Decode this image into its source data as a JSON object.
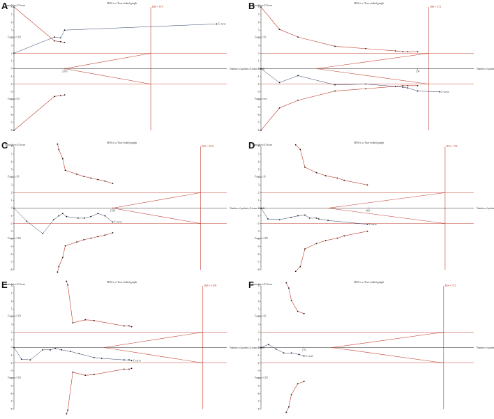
{
  "colors": {
    "red": "#c0392b",
    "black": "#222222",
    "grey": "#6f6f6f"
  },
  "chart_data": [
    {
      "type": "line",
      "panel": "A",
      "title": "RIS is a Two-sided graph",
      "ylabel": "Cumulative Z-Score",
      "xlabel": "Number of patients (Linear scaled)",
      "ylim": [
        -8,
        8
      ],
      "ris_label": "RIS = 675",
      "ris": 675,
      "x_max": 1050,
      "yticks": [
        8,
        7,
        6,
        5,
        4,
        3,
        2,
        1,
        0,
        -1,
        -2,
        -3,
        -4,
        -5,
        -6,
        -7,
        -8
      ],
      "upper_label": "Favours CID",
      "lower_label": "Favours GS",
      "boundary_upper": {
        "x": [
          0,
          200,
          230,
          250
        ],
        "y": [
          8,
          3.6,
          3.5,
          3.4
        ]
      },
      "boundary_lower": {
        "x": [
          0,
          200,
          230,
          250
        ],
        "y": [
          -8,
          -3.6,
          -3.5,
          -3.4
        ]
      },
      "futility_upper": {
        "x": [
          250,
          675
        ],
        "y": [
          0,
          2
        ]
      },
      "futility_lower": {
        "x": [
          250,
          675
        ],
        "y": [
          0,
          -2
        ]
      },
      "z_curve_label": "Z-curve",
      "z_curve": {
        "x": [
          0,
          200,
          230,
          250,
          1000
        ],
        "y": [
          2,
          4.1,
          4.0,
          5.0,
          5.8
        ]
      },
      "sample_label": "2316",
      "sample_x": 250
    },
    {
      "type": "line",
      "panel": "B",
      "title": "RIS is a Two-sided graph",
      "ylabel": "Cumulative Z-Score",
      "xlabel": "Number of patients (Linear scaled)",
      "ylim": [
        -8,
        8
      ],
      "ris_label": "RIS = 272",
      "ris": 272,
      "x_max": 345,
      "yticks": [
        8,
        7,
        6,
        5,
        4,
        3,
        2,
        1,
        0,
        -1,
        -2,
        -3,
        -4,
        -5,
        -6,
        -7,
        -8
      ],
      "upper_label": "Favours SS",
      "lower_label": "Favours test",
      "boundary_upper": {
        "x": [
          0,
          30,
          60,
          120,
          170,
          218,
          230,
          238,
          254
        ],
        "y": [
          8,
          5.1,
          4.1,
          2.9,
          2.6,
          2.3,
          2.2,
          2.2,
          2.2
        ]
      },
      "boundary_lower": {
        "x": [
          0,
          30,
          60,
          120,
          170,
          218,
          230,
          238,
          254
        ],
        "y": [
          -8,
          -5.1,
          -4.1,
          -2.9,
          -2.6,
          -2.3,
          -2.2,
          -2.2,
          -2.2
        ]
      },
      "futility_upper": {
        "x": [
          90,
          272
        ],
        "y": [
          0,
          2
        ]
      },
      "futility_lower": {
        "x": [
          90,
          272
        ],
        "y": [
          0,
          -2
        ]
      },
      "z_curve_label": "Z-curve",
      "z_curve": {
        "x": [
          0,
          30,
          60,
          120,
          170,
          218,
          230,
          238,
          254,
          290
        ],
        "y": [
          0,
          -1.8,
          -0.9,
          -2.1,
          -2.0,
          -2.3,
          -2.4,
          -2.5,
          -2.9,
          -3.0
        ]
      },
      "sample_label": "254",
      "sample_x": 254
    },
    {
      "type": "line",
      "panel": "C",
      "title": "RIS is a Two-sided graph",
      "ylabel": "Cumulative Z-Score",
      "xlabel": "Number of patients (Linear scaled)",
      "ylim": [
        -8,
        8
      ],
      "ris_label": "RIS = 2911",
      "ris": 2911,
      "x_max": 3320,
      "yticks": [
        8,
        7,
        6,
        5,
        4,
        3,
        2,
        1,
        0,
        -1,
        -2,
        -3,
        -4,
        -5,
        -6,
        -7,
        -8
      ],
      "upper_label": "Favours SS",
      "lower_label": "Favours CID",
      "boundary_upper": {
        "x": [
          680,
          700,
          760,
          800,
          980,
          1090,
          1200,
          1310,
          1420,
          1540
        ],
        "y": [
          8.3,
          7.6,
          6.4,
          4.9,
          4.4,
          4.1,
          3.9,
          3.7,
          3.5,
          3.2
        ]
      },
      "boundary_lower": {
        "x": [
          680,
          700,
          760,
          800,
          980,
          1090,
          1200,
          1310,
          1420,
          1540
        ],
        "y": [
          -8.3,
          -7.6,
          -6.4,
          -4.9,
          -4.4,
          -4.1,
          -3.9,
          -3.7,
          -3.5,
          -3.2
        ]
      },
      "futility_upper": {
        "x": [
          1540,
          2911
        ],
        "y": [
          0,
          2
        ]
      },
      "futility_lower": {
        "x": [
          1540,
          2911
        ],
        "y": [
          0,
          -2
        ]
      },
      "z_curve_label": "Z-curve",
      "z_curve": {
        "x": [
          0,
          200,
          450,
          620,
          700,
          760,
          820,
          1000,
          1100,
          1200,
          1310,
          1420,
          1540
        ],
        "y": [
          0,
          -1.7,
          -3.3,
          -1.5,
          -1.0,
          -0.7,
          -1.1,
          -1.3,
          -1.3,
          -1.1,
          -0.7,
          -1.0,
          -1.8
        ]
      },
      "sample_label": "1535",
      "sample_x": 1540
    },
    {
      "type": "line",
      "panel": "D",
      "title": "RIS is a Two-sided graph",
      "ylabel": "Cumulative Z-Score",
      "xlabel": "Number of patients (Linear scaled)",
      "ylim": [
        -8,
        8
      ],
      "ris_label": "RIS = 796",
      "ris": 796,
      "x_max": 920,
      "yticks": [
        8,
        7,
        6,
        5,
        4,
        3,
        2,
        1,
        0,
        -1,
        -2,
        -3,
        -4,
        -5,
        -6,
        -7,
        -8
      ],
      "upper_label": "Favours IS",
      "lower_label": "Favours CID",
      "boundary_upper": {
        "x": [
          150,
          170,
          190,
          240,
          280,
          330,
          360,
          460
        ],
        "y": [
          8.2,
          7.6,
          5.3,
          4.6,
          4.2,
          3.9,
          3.6,
          3.0
        ]
      },
      "boundary_lower": {
        "x": [
          150,
          170,
          190,
          240,
          280,
          330,
          360,
          460
        ],
        "y": [
          -8.2,
          -7.6,
          -5.3,
          -4.6,
          -4.2,
          -3.9,
          -3.6,
          -3.0
        ]
      },
      "futility_upper": {
        "x": [
          290,
          796
        ],
        "y": [
          0,
          2
        ]
      },
      "futility_lower": {
        "x": [
          290,
          796
        ],
        "y": [
          0,
          -2
        ]
      },
      "z_curve_label": "Z-curve",
      "z_curve": {
        "x": [
          0,
          30,
          80,
          130,
          160,
          190,
          210,
          240,
          250,
          290,
          460
        ],
        "y": [
          0,
          -1.4,
          -1.5,
          -1.2,
          -1.0,
          -0.9,
          -1.3,
          -1.3,
          -1.4,
          -1.6,
          -2.1
        ]
      },
      "sample_label": "463",
      "sample_x": 463
    },
    {
      "type": "line",
      "panel": "E",
      "title": "RIS is a Two-sided graph",
      "ylabel": "Cumulative Z-Score",
      "xlabel": "Number of patients (Linear scaled)",
      "ylim": [
        -8,
        8
      ],
      "ris_label": "RIS = 1509",
      "ris": 1509,
      "x_max": 1700,
      "yticks": [
        8,
        7,
        6,
        5,
        4,
        3,
        2,
        1,
        0,
        -1,
        -2,
        -3,
        -4,
        -5,
        -6,
        -7,
        -8
      ],
      "upper_label": "Favours CID",
      "lower_label": "Favours CID",
      "boundary_upper": {
        "x": [
          420,
          430,
          470,
          570,
          640,
          880,
          920,
          940
        ],
        "y": [
          8.6,
          8.1,
          3.2,
          3.6,
          3.5,
          2.8,
          2.8,
          2.7
        ]
      },
      "boundary_lower": {
        "x": [
          420,
          430,
          470,
          570,
          640,
          880,
          920,
          940
        ],
        "y": [
          -8.6,
          -8.1,
          -3.2,
          -3.6,
          -3.5,
          -2.8,
          -2.8,
          -2.7
        ]
      },
      "futility_upper": {
        "x": [
          720,
          1509
        ],
        "y": [
          0,
          2
        ]
      },
      "futility_lower": {
        "x": [
          720,
          1509
        ],
        "y": [
          0,
          -2
        ]
      },
      "z_curve_label": "Z-curve",
      "z_curve": {
        "x": [
          0,
          60,
          130,
          230,
          290,
          330,
          380,
          450,
          520,
          640,
          700,
          880,
          920,
          940
        ],
        "y": [
          0,
          -1.5,
          -1.6,
          -0.3,
          -0.3,
          -0.1,
          -0.3,
          -0.5,
          -0.8,
          -1.3,
          -1.4,
          -1.6,
          -1.6,
          -1.7
        ]
      },
      "sample_label": "",
      "sample_x": 940
    },
    {
      "type": "line",
      "panel": "F",
      "title": "RIS is a Two-sided graph",
      "ylabel": "Cumulative Z-Score",
      "xlabel": "Number of patients (Linear scaled)",
      "ylim": [
        -8,
        8
      ],
      "ris_label": "RIS = 721",
      "ris": 721,
      "x_max": 840,
      "yticks": [
        8,
        7,
        6,
        5,
        4,
        3,
        2,
        1,
        0,
        -1,
        -2,
        -3,
        -4,
        -5,
        -6,
        -7,
        -8
      ],
      "upper_label": "Favours SS",
      "lower_label": "Favours CID",
      "boundary_upper": {
        "x": [
          100,
          110,
          120,
          145,
          170
        ],
        "y": [
          8.4,
          7.7,
          6.1,
          4.7,
          4.4
        ]
      },
      "boundary_lower": {
        "x": [
          100,
          110,
          120,
          145,
          170
        ],
        "y": [
          -8.4,
          -7.7,
          -6.1,
          -4.7,
          -4.4
        ]
      },
      "futility_upper": {
        "x": [
          280,
          721
        ],
        "y": [
          0,
          2
        ]
      },
      "futility_lower": {
        "x": [
          280,
          721
        ],
        "y": [
          0,
          -2
        ]
      },
      "z_curve_label": "Z-curve",
      "z_curve": {
        "x": [
          0,
          30,
          60,
          90,
          120,
          150,
          170
        ],
        "y": [
          0,
          0.4,
          -0.2,
          -0.7,
          -0.7,
          -0.9,
          -1.1
        ]
      },
      "sample_label": "170",
      "sample_x": 170
    }
  ]
}
